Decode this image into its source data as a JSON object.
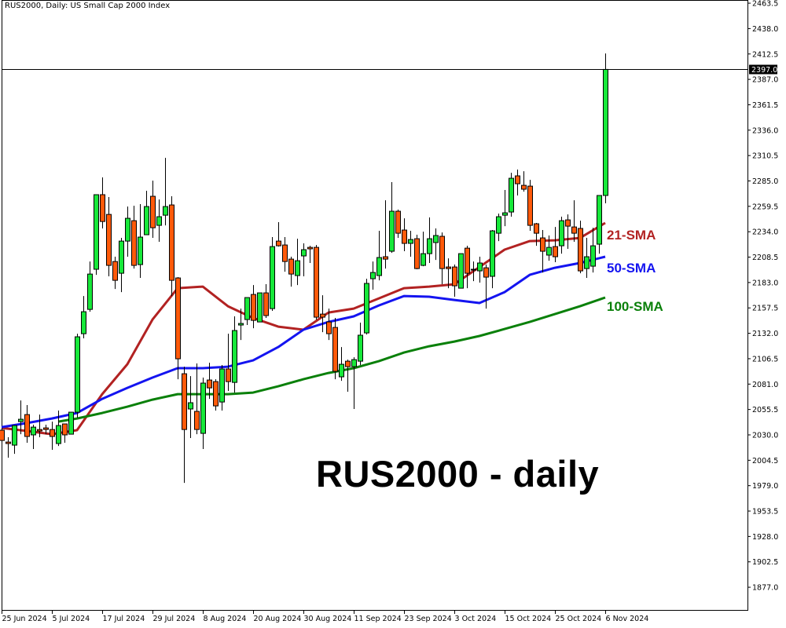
{
  "header": {
    "title": "RUS2000, Daily:  US Small Cap 2000 Index"
  },
  "annotation": "RUS2000 - daily",
  "colors": {
    "bull": "#17e83a",
    "bear": "#ff5a0a",
    "sma21": "#b22222",
    "sma50": "#1414f0",
    "sma100": "#0a800a",
    "price_tag_bg": "#000000"
  },
  "chart_data": {
    "type": "candlestick",
    "title": "RUS2000, Daily:  US Small Cap 2000 Index",
    "ylim": [
      1854.2,
      2466.7
    ],
    "grid": false,
    "y_ticks": [
      "2463.5",
      "2438.0",
      "2412.5",
      "2387.0",
      "2361.5",
      "2336.0",
      "2310.5",
      "2285.0",
      "2259.5",
      "2234.0",
      "2208.5",
      "2183.0",
      "2157.5",
      "2132.0",
      "2106.5",
      "2081.0",
      "2055.5",
      "2030.0",
      "2004.5",
      "1979.0",
      "1953.5",
      "1928.0",
      "1902.5",
      "1877.0"
    ],
    "x_ticks": [
      {
        "date": "2024-06-25",
        "label": "25 Jun 2024"
      },
      {
        "date": "2024-07-05",
        "label": "5 Jul 2024"
      },
      {
        "date": "2024-07-17",
        "label": "17 Jul 2024"
      },
      {
        "date": "2024-07-29",
        "label": "29 Jul 2024"
      },
      {
        "date": "2024-08-08",
        "label": "8 Aug 2024"
      },
      {
        "date": "2024-08-20",
        "label": "20 Aug 2024"
      },
      {
        "date": "2024-08-30",
        "label": "30 Aug 2024"
      },
      {
        "date": "2024-09-11",
        "label": "11 Sep 2024"
      },
      {
        "date": "2024-09-23",
        "label": "23 Sep 2024"
      },
      {
        "date": "2024-10-03",
        "label": "3 Oct 2024"
      },
      {
        "date": "2024-10-15",
        "label": "15 Oct 2024"
      },
      {
        "date": "2024-10-25",
        "label": "25 Oct 2024"
      },
      {
        "date": "2024-11-06",
        "label": "6 Nov 2024"
      }
    ],
    "current_price": "2397.0",
    "candles_columns": [
      "date",
      "open",
      "high",
      "low",
      "close"
    ],
    "candles": [
      [
        "2024-06-25",
        2034.7,
        2037.0,
        2022.8,
        2024.4
      ],
      [
        "2024-06-26",
        2022.8,
        2027.6,
        2007.1,
        2021.3
      ],
      [
        "2024-06-27",
        2019.7,
        2039.4,
        2011.0,
        2039.4
      ],
      [
        "2024-06-28",
        2043.3,
        2064.6,
        2030.7,
        2045.7
      ],
      [
        "2024-07-01",
        2050.4,
        2059.9,
        2022.1,
        2028.4
      ],
      [
        "2024-07-02",
        2030.0,
        2040.2,
        2015.8,
        2037.8
      ],
      [
        "2024-07-03",
        2035.4,
        2050.4,
        2027.6,
        2033.9
      ],
      [
        "2024-07-04",
        2037.0,
        2040.2,
        2030.7,
        2035.4
      ],
      [
        "2024-07-05",
        2035.4,
        2043.3,
        2015.0,
        2028.4
      ],
      [
        "2024-07-08",
        2021.3,
        2054.4,
        2018.9,
        2039.4
      ],
      [
        "2024-07-09",
        2041.0,
        2041.0,
        2022.1,
        2030.0
      ],
      [
        "2024-07-10",
        2030.7,
        2052.8,
        2030.7,
        2052.8
      ],
      [
        "2024-07-11",
        2052.8,
        2131.6,
        2047.3,
        2128.5
      ],
      [
        "2024-07-12",
        2131.6,
        2169.4,
        2126.9,
        2153.7
      ],
      [
        "2024-07-15",
        2156.0,
        2204.1,
        2153.7,
        2191.5
      ],
      [
        "2024-07-16",
        2196.3,
        2271.2,
        2190.7,
        2271.2
      ],
      [
        "2024-07-17",
        2271.2,
        2288.5,
        2237.3,
        2244.3
      ],
      [
        "2024-07-18",
        2251.4,
        2268.8,
        2189.2,
        2200.2
      ],
      [
        "2024-07-19",
        2204.1,
        2208.9,
        2176.5,
        2185.2
      ],
      [
        "2024-07-22",
        2192.3,
        2227.8,
        2173.4,
        2224.6
      ],
      [
        "2024-07-23",
        2224.6,
        2259.3,
        2208.9,
        2247.5
      ],
      [
        "2024-07-24",
        2245.1,
        2260.1,
        2197.0,
        2200.2
      ],
      [
        "2024-07-25",
        2201.0,
        2261.7,
        2187.6,
        2228.6
      ],
      [
        "2024-07-26",
        2231.0,
        2275.1,
        2231.0,
        2259.3
      ],
      [
        "2024-07-29",
        2269.6,
        2285.3,
        2227.8,
        2238.0
      ],
      [
        "2024-07-30",
        2240.4,
        2266.4,
        2223.9,
        2249.1
      ],
      [
        "2024-07-31",
        2250.6,
        2308.2,
        2240.4,
        2259.3
      ],
      [
        "2024-08-01",
        2260.9,
        2269.6,
        2169.4,
        2185.2
      ],
      [
        "2024-08-02",
        2187.6,
        2188.4,
        2085.9,
        2106.4
      ],
      [
        "2024-08-05",
        2091.4,
        2098.5,
        1981.8,
        2035.4
      ],
      [
        "2024-08-06",
        2056.0,
        2089.0,
        2026.8,
        2062.3
      ],
      [
        "2024-08-07",
        2053.6,
        2101.7,
        2030.7,
        2035.4
      ],
      [
        "2024-08-08",
        2031.5,
        2087.5,
        2015.8,
        2082.0
      ],
      [
        "2024-08-09",
        2085.1,
        2102.4,
        2066.2,
        2077.2
      ],
      [
        "2024-08-12",
        2083.5,
        2085.9,
        2054.4,
        2059.1
      ],
      [
        "2024-08-13",
        2063.0,
        2100.1,
        2054.4,
        2096.2
      ],
      [
        "2024-08-14",
        2096.2,
        2131.6,
        2074.1,
        2083.5
      ],
      [
        "2024-08-15",
        2082.7,
        2149.0,
        2072.5,
        2134.8
      ],
      [
        "2024-08-16",
        2140.3,
        2156.8,
        2125.3,
        2141.9
      ],
      [
        "2024-08-19",
        2145.8,
        2167.9,
        2140.3,
        2167.9
      ],
      [
        "2024-08-20",
        2171.0,
        2180.5,
        2137.1,
        2145.0
      ],
      [
        "2024-08-21",
        2143.4,
        2172.6,
        2143.4,
        2172.6
      ],
      [
        "2024-08-22",
        2172.6,
        2181.3,
        2147.4,
        2149.8
      ],
      [
        "2024-08-23",
        2156.8,
        2228.6,
        2154.5,
        2219.1
      ],
      [
        "2024-08-26",
        2224.6,
        2243.6,
        2219.1,
        2219.9
      ],
      [
        "2024-08-27",
        2220.7,
        2228.6,
        2193.9,
        2204.1
      ],
      [
        "2024-08-28",
        2206.5,
        2208.9,
        2178.9,
        2191.5
      ],
      [
        "2024-08-29",
        2190.0,
        2227.0,
        2180.5,
        2204.9
      ],
      [
        "2024-08-30",
        2209.7,
        2222.3,
        2189.2,
        2216.0
      ],
      [
        "2024-09-02",
        2218.3,
        2219.9,
        2202.6,
        2216.8
      ],
      [
        "2024-09-03",
        2218.3,
        2220.7,
        2145.8,
        2148.2
      ],
      [
        "2024-09-04",
        2151.3,
        2170.2,
        2133.2,
        2148.2
      ],
      [
        "2024-09-05",
        2143.4,
        2156.8,
        2125.3,
        2131.6
      ],
      [
        "2024-09-06",
        2137.9,
        2147.4,
        2085.9,
        2093.8
      ],
      [
        "2024-09-09",
        2088.3,
        2118.2,
        2084.3,
        2100.9
      ],
      [
        "2024-09-10",
        2104.0,
        2105.6,
        2073.3,
        2098.5
      ],
      [
        "2024-09-11",
        2098.5,
        2107.9,
        2056.0,
        2105.6
      ],
      [
        "2024-09-12",
        2104.0,
        2142.7,
        2100.1,
        2130.1
      ],
      [
        "2024-09-13",
        2132.4,
        2186.8,
        2130.8,
        2182.1
      ],
      [
        "2024-09-16",
        2186.8,
        2204.1,
        2175.8,
        2193.1
      ],
      [
        "2024-09-17",
        2190.0,
        2234.9,
        2185.2,
        2208.1
      ],
      [
        "2024-09-18",
        2208.9,
        2265.6,
        2197.0,
        2206.5
      ],
      [
        "2024-09-19",
        2214.4,
        2283.8,
        2212.8,
        2254.6
      ],
      [
        "2024-09-20",
        2254.6,
        2256.2,
        2227.8,
        2232.5
      ],
      [
        "2024-09-23",
        2235.7,
        2247.5,
        2214.4,
        2222.3
      ],
      [
        "2024-09-24",
        2222.3,
        2234.9,
        2208.9,
        2226.2
      ],
      [
        "2024-09-25",
        2227.0,
        2231.0,
        2196.3,
        2197.0
      ],
      [
        "2024-09-26",
        2200.2,
        2234.1,
        2199.4,
        2212.0
      ],
      [
        "2024-09-27",
        2212.0,
        2248.3,
        2202.6,
        2227.0
      ],
      [
        "2024-09-30",
        2223.1,
        2237.3,
        2205.7,
        2230.2
      ],
      [
        "2024-10-01",
        2229.4,
        2233.3,
        2181.3,
        2197.0
      ],
      [
        "2024-10-02",
        2198.6,
        2207.3,
        2177.3,
        2197.0
      ],
      [
        "2024-10-03",
        2198.6,
        2201.0,
        2168.7,
        2179.7
      ],
      [
        "2024-10-04",
        2177.3,
        2212.0,
        2177.3,
        2212.0
      ],
      [
        "2024-10-07",
        2217.5,
        2219.9,
        2177.3,
        2192.3
      ],
      [
        "2024-10-08",
        2196.3,
        2204.1,
        2184.4,
        2195.5
      ],
      [
        "2024-10-09",
        2194.7,
        2208.9,
        2182.9,
        2202.6
      ],
      [
        "2024-10-10",
        2197.8,
        2201.0,
        2156.8,
        2188.4
      ],
      [
        "2024-10-11",
        2189.2,
        2235.7,
        2177.3,
        2234.9
      ],
      [
        "2024-10-14",
        2232.5,
        2252.2,
        2224.6,
        2249.1
      ],
      [
        "2024-10-15",
        2250.6,
        2275.9,
        2239.6,
        2253.0
      ],
      [
        "2024-10-16",
        2253.8,
        2293.2,
        2249.1,
        2287.7
      ],
      [
        "2024-10-17",
        2290.1,
        2296.4,
        2270.4,
        2282.2
      ],
      [
        "2024-10-18",
        2280.6,
        2294.8,
        2274.3,
        2276.7
      ],
      [
        "2024-10-21",
        2279.8,
        2286.1,
        2234.9,
        2240.4
      ],
      [
        "2024-10-22",
        2242.0,
        2242.8,
        2219.9,
        2232.5
      ],
      [
        "2024-10-23",
        2227.8,
        2235.7,
        2193.1,
        2214.4
      ],
      [
        "2024-10-24",
        2210.5,
        2230.2,
        2204.9,
        2218.3
      ],
      [
        "2024-10-25",
        2219.1,
        2238.8,
        2203.4,
        2208.9
      ],
      [
        "2024-10-28",
        2219.9,
        2249.1,
        2212.0,
        2245.1
      ],
      [
        "2024-10-29",
        2245.9,
        2251.4,
        2216.8,
        2239.6
      ],
      [
        "2024-10-30",
        2238.8,
        2265.6,
        2223.9,
        2232.5
      ],
      [
        "2024-10-31",
        2237.3,
        2245.1,
        2192.3,
        2194.7
      ],
      [
        "2024-11-01",
        2197.0,
        2227.8,
        2187.6,
        2208.9
      ],
      [
        "2024-11-04",
        2199.4,
        2238.0,
        2193.1,
        2219.9
      ],
      [
        "2024-11-05",
        2221.5,
        2270.4,
        2212.0,
        2270.4
      ],
      [
        "2024-11-06",
        2270.4,
        2413.0,
        2262.5,
        2397.0
      ]
    ],
    "series": [
      {
        "name": "21-SMA",
        "color": "#b22222",
        "points": [
          [
            "2024-06-25",
            2037.0
          ],
          [
            "2024-07-01",
            2033.9
          ],
          [
            "2024-07-05",
            2030.7
          ],
          [
            "2024-07-11",
            2034.7
          ],
          [
            "2024-07-17",
            2070.9
          ],
          [
            "2024-07-23",
            2100.9
          ],
          [
            "2024-07-29",
            2145.8
          ],
          [
            "2024-08-02",
            2177.3
          ],
          [
            "2024-08-08",
            2178.9
          ],
          [
            "2024-08-14",
            2159.2
          ],
          [
            "2024-08-20",
            2147.4
          ],
          [
            "2024-08-26",
            2138.7
          ],
          [
            "2024-08-30",
            2135.6
          ],
          [
            "2024-09-05",
            2152.9
          ],
          [
            "2024-09-11",
            2156.8
          ],
          [
            "2024-09-17",
            2167.1
          ],
          [
            "2024-09-23",
            2177.3
          ],
          [
            "2024-09-27",
            2178.9
          ],
          [
            "2024-10-03",
            2181.3
          ],
          [
            "2024-10-09",
            2198.6
          ],
          [
            "2024-10-15",
            2216.0
          ],
          [
            "2024-10-21",
            2224.6
          ],
          [
            "2024-10-25",
            2225.4
          ],
          [
            "2024-10-31",
            2227.8
          ],
          [
            "2024-11-06",
            2242.8
          ]
        ]
      },
      {
        "name": "50-SMA",
        "color": "#1414f0",
        "points": [
          [
            "2024-06-25",
            2037.8
          ],
          [
            "2024-07-01",
            2041.8
          ],
          [
            "2024-07-05",
            2046.5
          ],
          [
            "2024-07-11",
            2052.0
          ],
          [
            "2024-07-17",
            2066.2
          ],
          [
            "2024-07-23",
            2077.2
          ],
          [
            "2024-07-29",
            2087.5
          ],
          [
            "2024-08-02",
            2097.0
          ],
          [
            "2024-08-08",
            2097.0
          ],
          [
            "2024-08-14",
            2098.5
          ],
          [
            "2024-08-20",
            2104.8
          ],
          [
            "2024-08-26",
            2118.2
          ],
          [
            "2024-08-30",
            2135.6
          ],
          [
            "2024-09-05",
            2143.4
          ],
          [
            "2024-09-11",
            2149.0
          ],
          [
            "2024-09-17",
            2160.0
          ],
          [
            "2024-09-23",
            2169.4
          ],
          [
            "2024-09-27",
            2168.7
          ],
          [
            "2024-10-03",
            2165.5
          ],
          [
            "2024-10-09",
            2162.4
          ],
          [
            "2024-10-15",
            2173.4
          ],
          [
            "2024-10-21",
            2190.7
          ],
          [
            "2024-10-25",
            2197.8
          ],
          [
            "2024-10-31",
            2202.6
          ],
          [
            "2024-11-06",
            2208.9
          ]
        ]
      },
      {
        "name": "100-SMA",
        "color": "#0a800a",
        "points": [
          [
            "2024-07-08",
            2043.3
          ],
          [
            "2024-07-11",
            2046.5
          ],
          [
            "2024-07-17",
            2052.0
          ],
          [
            "2024-07-23",
            2058.3
          ],
          [
            "2024-07-29",
            2065.4
          ],
          [
            "2024-08-02",
            2070.9
          ],
          [
            "2024-08-08",
            2070.9
          ],
          [
            "2024-08-14",
            2070.9
          ],
          [
            "2024-08-20",
            2072.5
          ],
          [
            "2024-08-26",
            2078.8
          ],
          [
            "2024-08-30",
            2085.9
          ],
          [
            "2024-09-05",
            2092.2
          ],
          [
            "2024-09-11",
            2097.0
          ],
          [
            "2024-09-17",
            2104.0
          ],
          [
            "2024-09-23",
            2112.7
          ],
          [
            "2024-09-27",
            2119.0
          ],
          [
            "2024-10-03",
            2123.7
          ],
          [
            "2024-10-09",
            2129.3
          ],
          [
            "2024-10-15",
            2136.3
          ],
          [
            "2024-10-21",
            2143.4
          ],
          [
            "2024-10-25",
            2151.3
          ],
          [
            "2024-10-31",
            2159.2
          ],
          [
            "2024-11-06",
            2167.9
          ]
        ]
      }
    ]
  }
}
